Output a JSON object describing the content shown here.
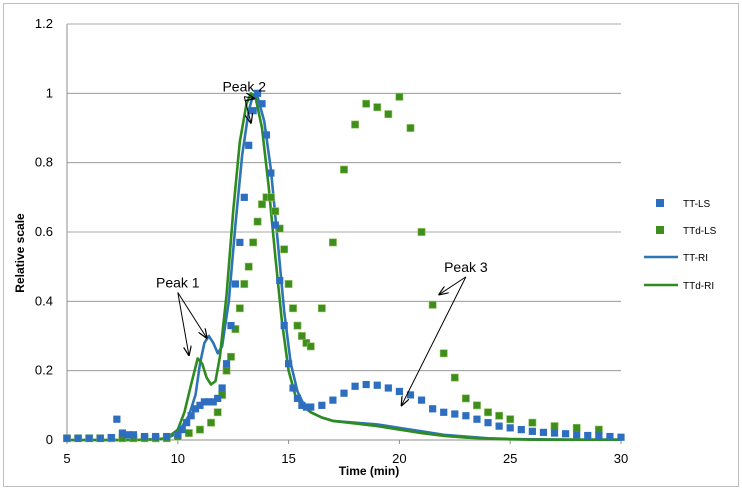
{
  "chart_data": {
    "type": "scatter",
    "title": "",
    "xlabel": "Time (min)",
    "ylabel": "Relative scale",
    "xlim": [
      5,
      30
    ],
    "ylim": [
      0,
      1.2
    ],
    "xticks": [
      "5",
      "10",
      "15",
      "20",
      "25",
      "30"
    ],
    "yticks": [
      "0",
      "0.2",
      "0.4",
      "0.6",
      "0.8",
      "1",
      "1.2"
    ],
    "grid": "horizontal",
    "legend_position": "right",
    "series": [
      {
        "name": "TT-LS",
        "kind": "markers",
        "color": "#2e6ec0",
        "x": [
          5.0,
          5.5,
          6.0,
          6.5,
          7.0,
          7.25,
          7.5,
          7.75,
          8.0,
          8.5,
          9.0,
          9.5,
          10.0,
          10.2,
          10.4,
          10.6,
          10.8,
          11.0,
          11.2,
          11.4,
          11.6,
          11.8,
          12.0,
          12.2,
          12.4,
          12.6,
          12.8,
          13.0,
          13.2,
          13.4,
          13.6,
          13.8,
          14.0,
          14.2,
          14.4,
          14.6,
          14.8,
          15.0,
          15.2,
          15.4,
          15.6,
          15.8,
          16.0,
          16.5,
          17.0,
          17.5,
          18.0,
          18.5,
          19.0,
          19.5,
          20.0,
          20.5,
          21.0,
          21.5,
          22.0,
          22.5,
          23.0,
          23.5,
          24.0,
          24.5,
          25.0,
          25.5,
          26.0,
          26.5,
          27.0,
          27.5,
          28.0,
          28.5,
          29.0,
          29.5,
          30.0
        ],
        "y": [
          0.005,
          0.005,
          0.005,
          0.005,
          0.007,
          0.06,
          0.02,
          0.015,
          0.015,
          0.01,
          0.01,
          0.01,
          0.015,
          0.03,
          0.05,
          0.07,
          0.09,
          0.1,
          0.11,
          0.11,
          0.11,
          0.12,
          0.15,
          0.22,
          0.33,
          0.45,
          0.57,
          0.7,
          0.85,
          0.95,
          1.0,
          0.97,
          0.88,
          0.77,
          0.62,
          0.46,
          0.33,
          0.22,
          0.15,
          0.12,
          0.1,
          0.095,
          0.095,
          0.1,
          0.115,
          0.135,
          0.155,
          0.16,
          0.158,
          0.15,
          0.14,
          0.13,
          0.115,
          0.09,
          0.08,
          0.075,
          0.07,
          0.06,
          0.05,
          0.04,
          0.035,
          0.03,
          0.025,
          0.022,
          0.02,
          0.018,
          0.015,
          0.013,
          0.012,
          0.01,
          0.008
        ]
      },
      {
        "name": "TTd-LS",
        "kind": "markers",
        "color": "#3e8e1e",
        "x": [
          5.0,
          5.5,
          6.0,
          6.5,
          7.0,
          7.5,
          8.0,
          8.5,
          9.0,
          9.5,
          10.0,
          10.5,
          11.0,
          11.5,
          11.8,
          12.0,
          12.2,
          12.4,
          12.6,
          12.8,
          13.0,
          13.2,
          13.4,
          13.6,
          13.8,
          14.0,
          14.2,
          14.4,
          14.6,
          14.8,
          15.0,
          15.2,
          15.4,
          15.6,
          15.8,
          16.0,
          16.5,
          17.0,
          17.5,
          18.0,
          18.5,
          19.0,
          19.5,
          20.0,
          20.5,
          21.0,
          21.5,
          22.0,
          22.5,
          23.0,
          23.5,
          24.0,
          24.5,
          25.0,
          26.0,
          27.0,
          28.0,
          29.0
        ],
        "y": [
          0.005,
          0.005,
          0.005,
          0.005,
          0.005,
          0.005,
          0.005,
          0.005,
          0.005,
          0.005,
          0.01,
          0.02,
          0.03,
          0.05,
          0.08,
          0.13,
          0.2,
          0.24,
          0.32,
          0.38,
          0.45,
          0.5,
          0.57,
          0.63,
          0.68,
          0.7,
          0.7,
          0.66,
          0.61,
          0.55,
          0.45,
          0.38,
          0.33,
          0.3,
          0.28,
          0.27,
          0.38,
          0.57,
          0.78,
          0.91,
          0.97,
          0.96,
          0.94,
          0.99,
          0.9,
          0.6,
          0.39,
          0.25,
          0.18,
          0.12,
          0.1,
          0.08,
          0.07,
          0.06,
          0.05,
          0.04,
          0.035,
          0.03
        ]
      },
      {
        "name": "TT-RI",
        "kind": "line",
        "color": "#2e75b6",
        "x": [
          5,
          6,
          7,
          8,
          9,
          9.5,
          10,
          10.5,
          10.8,
          11.0,
          11.2,
          11.4,
          11.6,
          11.8,
          12.0,
          12.3,
          12.6,
          12.9,
          13.2,
          13.4,
          13.6,
          13.9,
          14.2,
          14.5,
          14.8,
          15.1,
          15.4,
          15.7,
          16.0,
          16.5,
          17,
          18,
          19,
          20,
          21,
          22,
          23,
          24,
          25,
          26,
          28,
          30
        ],
        "y": [
          0,
          0,
          0,
          0,
          0.002,
          0.005,
          0.02,
          0.07,
          0.13,
          0.22,
          0.28,
          0.3,
          0.28,
          0.25,
          0.27,
          0.4,
          0.62,
          0.82,
          0.95,
          0.995,
          0.99,
          0.92,
          0.78,
          0.58,
          0.37,
          0.22,
          0.14,
          0.1,
          0.08,
          0.065,
          0.055,
          0.05,
          0.045,
          0.035,
          0.025,
          0.015,
          0.01,
          0.005,
          0.003,
          0.002,
          0.001,
          0.001
        ]
      },
      {
        "name": "TTd-RI",
        "kind": "line",
        "color": "#2e8b1e",
        "x": [
          5,
          6,
          7,
          8,
          9,
          9.5,
          10,
          10.3,
          10.6,
          10.9,
          11.1,
          11.3,
          11.5,
          11.7,
          11.9,
          12.2,
          12.5,
          12.8,
          13.1,
          13.3,
          13.5,
          13.8,
          14.1,
          14.4,
          14.7,
          15.0,
          15.3,
          15.6,
          16.0,
          16.5,
          17,
          18,
          19,
          20,
          21,
          22,
          23,
          24,
          25,
          26,
          28,
          30
        ],
        "y": [
          0,
          0,
          0,
          0,
          0.002,
          0.005,
          0.03,
          0.08,
          0.16,
          0.235,
          0.22,
          0.18,
          0.16,
          0.17,
          0.24,
          0.42,
          0.66,
          0.86,
          0.97,
          1.0,
          0.99,
          0.9,
          0.73,
          0.53,
          0.34,
          0.2,
          0.13,
          0.1,
          0.08,
          0.065,
          0.055,
          0.048,
          0.04,
          0.03,
          0.02,
          0.012,
          0.007,
          0.004,
          0.002,
          0.001,
          0.001,
          0.001
        ]
      }
    ],
    "annotations": [
      {
        "text": "Peak 2",
        "label_at": [
          13.0,
          1.005
        ],
        "targets": [
          [
            13.45,
            0.985
          ],
          [
            13.3,
            0.915
          ]
        ]
      },
      {
        "text": "Peak 1",
        "label_at": [
          10.0,
          0.44
        ],
        "targets": [
          [
            10.5,
            0.245
          ],
          [
            11.3,
            0.295
          ]
        ]
      },
      {
        "text": "Peak 3",
        "label_at": [
          23.0,
          0.485
        ],
        "targets": [
          [
            21.8,
            0.42
          ],
          [
            20.1,
            0.1
          ]
        ]
      }
    ]
  }
}
